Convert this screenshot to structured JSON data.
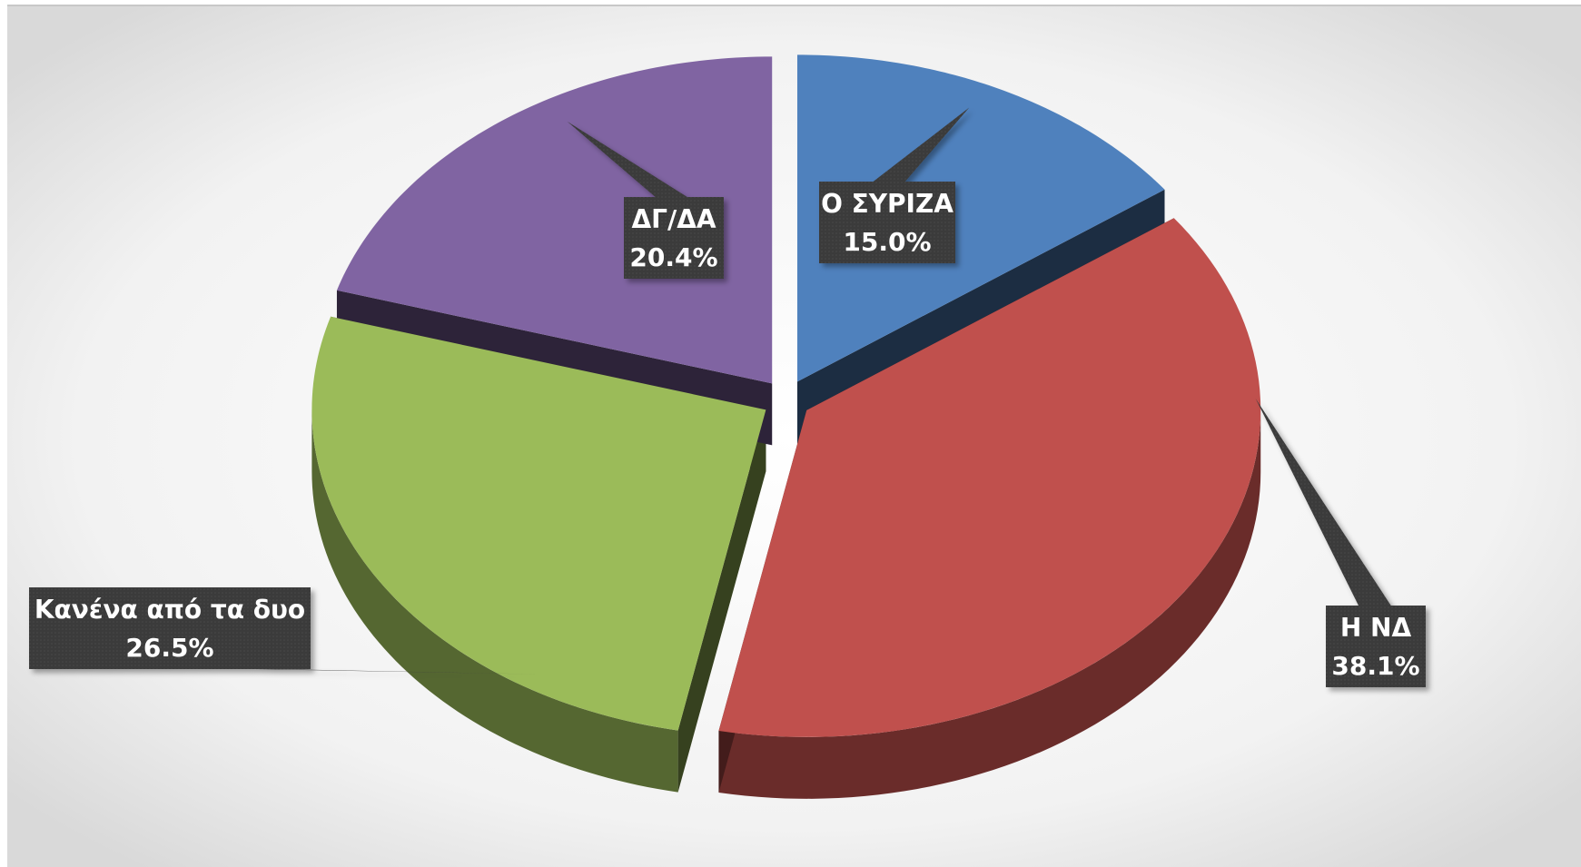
{
  "chart_data": {
    "type": "pie",
    "categories": [
      "Ο ΣΥΡΙΖΑ",
      "Η ΝΔ",
      "Κανένα από τα δυο",
      "ΔΓ/ΔΑ"
    ],
    "values": [
      15.0,
      38.1,
      26.5,
      20.4
    ],
    "value_labels": [
      "15.0%",
      "38.1%",
      "26.5%",
      "20.4%"
    ],
    "colors": [
      "#4f81bd",
      "#c0504d",
      "#9bbb59",
      "#8064a2"
    ]
  }
}
